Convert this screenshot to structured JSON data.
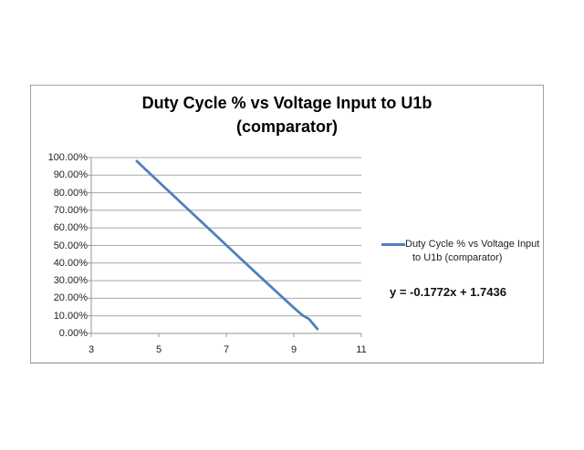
{
  "chart": {
    "title_line1": "Duty Cycle % vs Voltage Input to U1b",
    "title_line2": "(comparator)",
    "legend_line1": "Duty Cycle % vs Voltage Input",
    "legend_line2": "to U1b (comparator)",
    "equation": "y = -0.1772x + 1.7436",
    "colors": {
      "series": "#4f81bd",
      "gridline": "#a8a8a8",
      "axis": "#969696",
      "frame_border": "#a0a0a0",
      "text": "#222222"
    }
  },
  "chart_data": {
    "type": "line",
    "title": "Duty Cycle % vs Voltage Input to U1b (comparator)",
    "xlabel": "",
    "ylabel": "",
    "xlim": [
      3,
      11
    ],
    "ylim": [
      0,
      1
    ],
    "x_ticks": [
      "3",
      "5",
      "7",
      "9",
      "11"
    ],
    "y_ticks": [
      "100.00%",
      "90.00%",
      "80.00%",
      "70.00%",
      "60.00%",
      "50.00%",
      "40.00%",
      "30.00%",
      "20.00%",
      "10.00%",
      "0.00%"
    ],
    "grid": true,
    "legend_position": "right",
    "legend_entries": [
      "Duty Cycle % vs Voltage Input to U1b (comparator)"
    ],
    "annotations": [
      "y = -0.1772x + 1.7436"
    ],
    "series": [
      {
        "name": "Duty Cycle % vs Voltage Input to U1b (comparator)",
        "x": [
          4.35,
          5.0,
          5.5,
          6.0,
          6.5,
          7.0,
          7.5,
          8.0,
          8.5,
          9.0,
          9.25,
          9.45,
          9.7
        ],
        "y": [
          0.98,
          0.862,
          0.772,
          0.682,
          0.592,
          0.502,
          0.412,
          0.323,
          0.234,
          0.146,
          0.104,
          0.082,
          0.025
        ]
      }
    ]
  }
}
